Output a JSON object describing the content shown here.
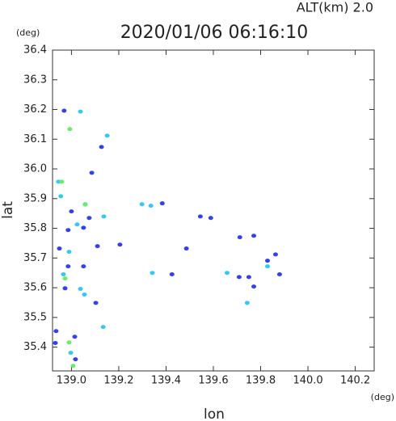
{
  "chart_data": {
    "type": "scatter",
    "title": "2020/01/06 06:16:10",
    "subtitle": "ALT(km) 2.0",
    "x_label": "lon",
    "y_label": "lat",
    "x_unit": "(deg)",
    "y_unit": "(deg)",
    "xlim": [
      138.92,
      140.28
    ],
    "ylim": [
      35.32,
      36.4
    ],
    "xticks": [
      {
        "value": 139,
        "label": "139.0"
      },
      139.2,
      139.4,
      139.6,
      139.8,
      {
        "value": 140,
        "label": "140.0"
      },
      140.2
    ],
    "yticks": [
      35.4,
      35.5,
      35.6,
      35.7,
      35.8,
      35.9,
      {
        "value": 36,
        "label": "36.0"
      },
      36.1,
      36.2,
      36.3,
      36.4
    ],
    "series": [
      {
        "color": "#3340f0",
        "x": [
          138.969,
          139.086,
          139.0,
          139.075,
          138.986,
          138.949,
          138.986,
          138.973,
          139.103,
          138.935,
          139.014,
          138.932,
          139.017,
          139.11,
          139.589,
          139.545,
          139.712,
          139.771,
          139.709,
          139.75,
          139.771,
          139.829,
          139.88,
          139.863,
          139.486,
          139.425,
          139.205,
          139.051,
          139.051,
          139.127,
          139.384
        ],
        "y": [
          36.196,
          35.987,
          35.857,
          35.835,
          35.794,
          35.732,
          35.672,
          35.598,
          35.549,
          35.454,
          35.435,
          35.414,
          35.359,
          35.74,
          35.835,
          35.84,
          35.77,
          35.775,
          35.636,
          35.636,
          35.604,
          35.691,
          35.645,
          35.712,
          35.732,
          35.645,
          35.745,
          35.672,
          35.802,
          36.074,
          35.884
        ]
      },
      {
        "color": "#33c8f5",
        "x": [
          138.945,
          138.955,
          139.038,
          139.151,
          139.058,
          139.137,
          139.024,
          138.966,
          139.055,
          139.134,
          138.997,
          139.743,
          139.298,
          139.829,
          138.99,
          139.342,
          139.038,
          139.658,
          139.336
        ],
        "y": [
          35.957,
          35.908,
          36.193,
          36.112,
          35.881,
          35.84,
          35.813,
          35.645,
          35.577,
          35.468,
          35.381,
          35.549,
          35.881,
          35.672,
          35.721,
          35.65,
          35.596,
          35.65,
          35.876
        ]
      },
      {
        "color": "#66ee66",
        "x": [
          138.993,
          138.959,
          138.973,
          138.99,
          139.007,
          139.058
        ],
        "y": [
          36.134,
          35.957,
          35.631,
          35.416,
          35.337,
          35.88
        ]
      }
    ]
  }
}
